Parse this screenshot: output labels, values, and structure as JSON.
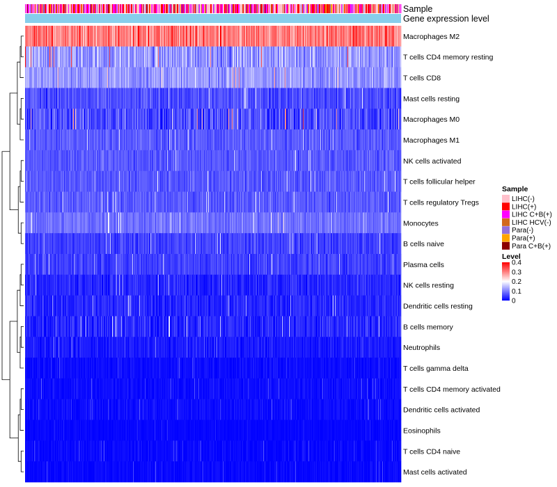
{
  "chart_data": {
    "type": "heatmap",
    "title": "",
    "column_count": 540,
    "annotations": [
      {
        "name": "Sample",
        "kind": "categorical"
      },
      {
        "name": "Gene expression level",
        "kind": "continuous"
      }
    ],
    "rows": [
      {
        "name": "Macrophages M2",
        "mean": 0.3,
        "spread": 0.08
      },
      {
        "name": "T cells CD4 memory resting",
        "mean": 0.12,
        "spread": 0.08
      },
      {
        "name": "T cells CD8",
        "mean": 0.12,
        "spread": 0.06
      },
      {
        "name": "Mast cells resting",
        "mean": 0.06,
        "spread": 0.05
      },
      {
        "name": "Macrophages M0",
        "mean": 0.06,
        "spread": 0.08
      },
      {
        "name": "Macrophages M1",
        "mean": 0.07,
        "spread": 0.04
      },
      {
        "name": "NK cells activated",
        "mean": 0.07,
        "spread": 0.04
      },
      {
        "name": "T cells follicular helper",
        "mean": 0.07,
        "spread": 0.04
      },
      {
        "name": "T cells regulatory  Tregs",
        "mean": 0.07,
        "spread": 0.04
      },
      {
        "name": "Monocytes",
        "mean": 0.09,
        "spread": 0.04
      },
      {
        "name": "B cells naive",
        "mean": 0.05,
        "spread": 0.04
      },
      {
        "name": "Plasma cells",
        "mean": 0.05,
        "spread": 0.04
      },
      {
        "name": "NK cells resting",
        "mean": 0.03,
        "spread": 0.04
      },
      {
        "name": "Dendritic cells resting",
        "mean": 0.03,
        "spread": 0.04
      },
      {
        "name": "B cells memory",
        "mean": 0.03,
        "spread": 0.05
      },
      {
        "name": "Neutrophils",
        "mean": 0.02,
        "spread": 0.03
      },
      {
        "name": "T cells gamma delta",
        "mean": 0.01,
        "spread": 0.02
      },
      {
        "name": "T cells CD4 memory activated",
        "mean": 0.01,
        "spread": 0.02
      },
      {
        "name": "Dendritic cells activated",
        "mean": 0.01,
        "spread": 0.02
      },
      {
        "name": "Eosinophils",
        "mean": 0.005,
        "spread": 0.01
      },
      {
        "name": "T cells CD4 naive",
        "mean": 0.005,
        "spread": 0.02
      },
      {
        "name": "Mast cells activated",
        "mean": 0.005,
        "spread": 0.02
      }
    ],
    "dendrogram_order_note": "row order follows hierarchical clustering shown at left",
    "legend_sample": {
      "title": "Sample",
      "entries": [
        {
          "label": "LIHC(-)",
          "color": "#ffc0cb"
        },
        {
          "label": "LIHC(+)",
          "color": "#ff0000"
        },
        {
          "label": "LIHC C+B(+)",
          "color": "#ff00ff"
        },
        {
          "label": "LIHC HCV(-)",
          "color": "#d2691e"
        },
        {
          "label": "Para(-)",
          "color": "#9370db"
        },
        {
          "label": "Para(+)",
          "color": "#ffa500"
        },
        {
          "label": "Para C+B(+)",
          "color": "#8b0000"
        }
      ]
    },
    "legend_level": {
      "title": "Level",
      "ticks": [
        "0.4",
        "0.3",
        "0.2",
        "0.1",
        "0"
      ],
      "range": [
        0,
        0.4
      ],
      "colors": {
        "low": "#0000ff",
        "mid": "#ffffff",
        "high": "#ff0000",
        "mid_value": 0.2
      }
    },
    "gene_expression_color": "#87ceeb"
  }
}
